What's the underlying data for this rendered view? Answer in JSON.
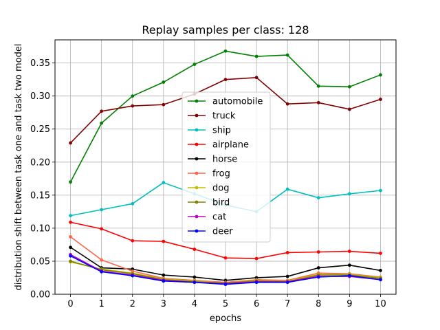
{
  "chart_data": {
    "type": "line",
    "title": "Replay samples per class: 128",
    "xlabel": "epochs",
    "ylabel": "distribution shift between task one and task two model",
    "x": [
      0,
      1,
      2,
      3,
      4,
      5,
      6,
      7,
      8,
      9,
      10
    ],
    "xticks": [
      "0",
      "1",
      "2",
      "3",
      "4",
      "5",
      "6",
      "7",
      "8",
      "9",
      "10"
    ],
    "yticks": [
      "0.00",
      "0.05",
      "0.10",
      "0.15",
      "0.20",
      "0.25",
      "0.30",
      "0.35"
    ],
    "yticks_values": [
      0,
      0.05,
      0.1,
      0.15,
      0.2,
      0.25,
      0.3,
      0.35
    ],
    "xlim": [
      -0.5,
      10.5
    ],
    "ylim": [
      0,
      0.385
    ],
    "grid": true,
    "legend_position": "center",
    "series": [
      {
        "name": "automobile",
        "color": "#008000",
        "values": [
          0.17,
          0.259,
          0.3,
          0.321,
          0.348,
          0.368,
          0.36,
          0.362,
          0.315,
          0.314,
          0.332
        ]
      },
      {
        "name": "truck",
        "color": "#800000",
        "values": [
          0.229,
          0.277,
          0.285,
          0.287,
          0.303,
          0.325,
          0.328,
          0.288,
          0.29,
          0.28,
          0.295
        ]
      },
      {
        "name": "ship",
        "color": "#00bfbf",
        "values": [
          0.119,
          0.128,
          0.137,
          0.169,
          0.152,
          0.135,
          0.125,
          0.159,
          0.146,
          0.152,
          0.157
        ]
      },
      {
        "name": "airplane",
        "color": "#ff0000",
        "values": [
          0.109,
          0.099,
          0.081,
          0.08,
          0.068,
          0.055,
          0.054,
          0.063,
          0.064,
          0.065,
          0.062
        ]
      },
      {
        "name": "horse",
        "color": "#000000",
        "values": [
          0.071,
          0.04,
          0.038,
          0.029,
          0.026,
          0.021,
          0.025,
          0.027,
          0.04,
          0.044,
          0.036
        ]
      },
      {
        "name": "frog",
        "color": "#ff6347",
        "values": [
          0.087,
          0.052,
          0.035,
          0.024,
          0.021,
          0.018,
          0.022,
          0.021,
          0.032,
          0.031,
          0.026
        ]
      },
      {
        "name": "dog",
        "color": "#bfbf00",
        "values": [
          0.049,
          0.038,
          0.032,
          0.023,
          0.02,
          0.017,
          0.021,
          0.02,
          0.03,
          0.03,
          0.025
        ]
      },
      {
        "name": "bird",
        "color": "#808000",
        "values": [
          0.05,
          0.037,
          0.031,
          0.022,
          0.019,
          0.017,
          0.02,
          0.019,
          0.029,
          0.029,
          0.024
        ]
      },
      {
        "name": "cat",
        "color": "#bf00bf",
        "values": [
          0.06,
          0.035,
          0.029,
          0.021,
          0.018,
          0.016,
          0.019,
          0.019,
          0.027,
          0.027,
          0.022
        ]
      },
      {
        "name": "deer",
        "color": "#0000ff",
        "values": [
          0.058,
          0.034,
          0.028,
          0.02,
          0.018,
          0.015,
          0.018,
          0.018,
          0.026,
          0.028,
          0.022
        ]
      }
    ]
  }
}
